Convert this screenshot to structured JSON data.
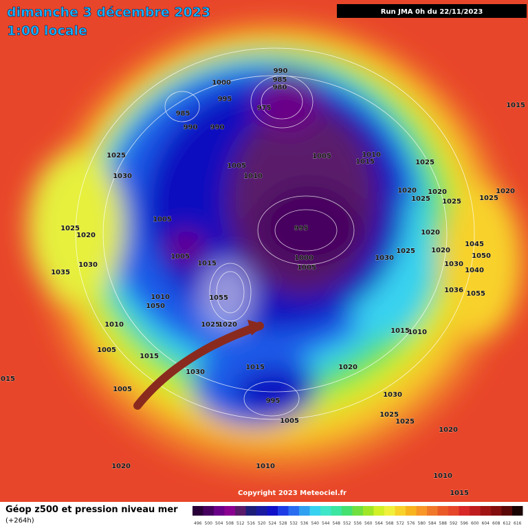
{
  "header": {
    "title": "dimanche 3 décembre 2023",
    "subtitle": "1:00 locale",
    "run": "Run JMA 0h du 22/11/2023"
  },
  "footer": {
    "copyright": "Copyright 2023 Meteociel.fr",
    "legend_title": "Géop z500 et pression niveau mer",
    "legend_subtitle": "(+264h)"
  },
  "legend": {
    "values": [
      496,
      500,
      504,
      508,
      512,
      516,
      520,
      524,
      528,
      532,
      536,
      540,
      544,
      548,
      552,
      556,
      560,
      564,
      568,
      572,
      576,
      580,
      584,
      588,
      592,
      596,
      600,
      604,
      608,
      612,
      616
    ],
    "colors": [
      "#2a0038",
      "#46005e",
      "#6a0088",
      "#8a0090",
      "#5a1a6a",
      "#1e1e78",
      "#1a1aa0",
      "#1010c8",
      "#1e3ce6",
      "#2a6cf0",
      "#30a0f0",
      "#38d2f0",
      "#40e6c8",
      "#3ce6a0",
      "#44e070",
      "#70e040",
      "#a0e628",
      "#d2f028",
      "#f0f03c",
      "#f8d22a",
      "#f8b41e",
      "#f89628",
      "#f0782a",
      "#ea5a28",
      "#e6462a",
      "#d82828",
      "#c01e1e",
      "#a01414",
      "#820e0e",
      "#5a0808",
      "#1a0404"
    ]
  },
  "isobar_labels": [
    "990",
    "985",
    "980",
    "1000",
    "995",
    "985",
    "990",
    "990",
    "975",
    "1005",
    "1010",
    "1015",
    "1025",
    "1005",
    "1010",
    "1025",
    "1030",
    "1020",
    "1020",
    "1025",
    "1025",
    "1025",
    "1020",
    "995",
    "1025",
    "1020",
    "1005",
    "1005",
    "1015",
    "1000",
    "1005",
    "1030",
    "1025",
    "1020",
    "1020",
    "1030",
    "1035",
    "1010",
    "1050",
    "1055",
    "1010",
    "1005",
    "1025",
    "1020",
    "1015",
    "1030",
    "1015",
    "1020",
    "1015",
    "1010",
    "995",
    "1005",
    "1030",
    "1025",
    "1025",
    "1020",
    "1005",
    "1020",
    "1010",
    "1010",
    "1015",
    "1015",
    "1015",
    "1030",
    "1045",
    "1050",
    "1040",
    "1036",
    "1055"
  ]
}
